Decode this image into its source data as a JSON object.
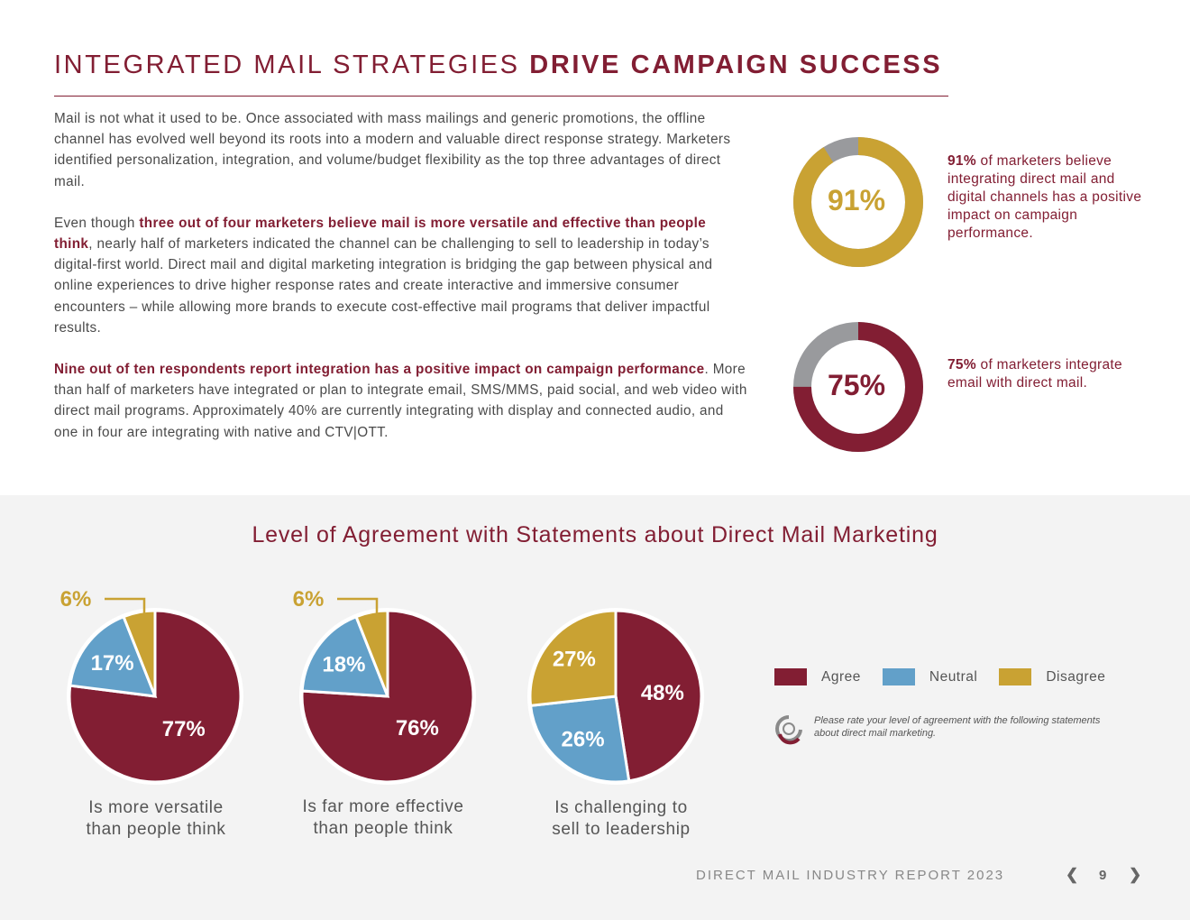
{
  "header": {
    "title_light": "INTEGRATED MAIL STRATEGIES",
    "title_bold": "DRIVE CAMPAIGN SUCCESS"
  },
  "body": {
    "p1": "Mail is not what it used to be. Once associated with mass mailings and generic promotions, the offline channel has evolved well beyond its roots into a modern and valuable direct response strategy. Marketers identified personalization, integration, and volume/budget flexibility as the top three advantages of direct mail.",
    "p2_lead": "Even though ",
    "p2_highlight": "three out of four marketers believe mail is more versatile and effective than people think",
    "p2_rest": ", nearly half of marketers indicated the channel can be challenging to sell to leadership in today’s digital-first world. Direct mail and digital marketing integration is bridging the gap between physical and online experiences to drive higher response rates and create interactive and immersive consumer encounters – while allowing more brands to execute cost-effective mail programs that deliver impactful results.",
    "p3_highlight": "Nine out of ten respondents report integration has a positive impact on campaign performance",
    "p3_rest": ". More than half of marketers have integrated or plan to integrate email, SMS/MMS, paid social, and web video with direct mail programs. Approximately 40% are currently integrating with display and connected audio, and one in four are integrating with native and CTV|OTT."
  },
  "stats": [
    {
      "value": 91,
      "label": "91%",
      "pct": "91%",
      "text": " of marketers believe integrating direct mail and digital channels has a positive impact on campaign performance.",
      "color": "#c9a233"
    },
    {
      "value": 75,
      "label": "75%",
      "pct": "75%",
      "text": " of marketers integrate email with direct mail.",
      "color": "#821e33"
    }
  ],
  "section": {
    "title": "Level of Agreement with Statements about Direct Mail Marketing"
  },
  "chart_data": {
    "type": "pie",
    "title": "Level of Agreement with Statements about Direct Mail Marketing",
    "series_names": [
      "Agree",
      "Neutral",
      "Disagree"
    ],
    "colors": {
      "Agree": "#821e33",
      "Neutral": "#62a0c9",
      "Disagree": "#c9a233"
    },
    "charts": [
      {
        "caption": [
          "Is more versatile",
          "than people think"
        ],
        "values": {
          "Agree": 77,
          "Neutral": 17,
          "Disagree": 6
        },
        "labels": {
          "Agree": "77%",
          "Neutral": "17%",
          "Disagree": "6%"
        }
      },
      {
        "caption": [
          "Is far more effective",
          "than people think"
        ],
        "values": {
          "Agree": 76,
          "Neutral": 18,
          "Disagree": 6
        },
        "labels": {
          "Agree": "76%",
          "Neutral": "18%",
          "Disagree": "6%"
        }
      },
      {
        "caption": [
          "Is challenging to",
          "sell to leadership"
        ],
        "values": {
          "Agree": 48,
          "Neutral": 26,
          "Disagree": 27
        },
        "labels": {
          "Agree": "48%",
          "Neutral": "26%",
          "Disagree": "27%"
        }
      }
    ]
  },
  "legend": {
    "agree": "Agree",
    "neutral": "Neutral",
    "disagree": "Disagree",
    "note": "Please rate your level of agreement with the following statements about direct mail marketing."
  },
  "footer": {
    "report": "DIRECT MAIL INDUSTRY REPORT 2023",
    "prev": "❮",
    "page": "9",
    "next": "❯"
  },
  "icons": {
    "prev": "chevron-left-icon",
    "next": "chevron-right-icon",
    "note": "survey-logo-icon"
  }
}
